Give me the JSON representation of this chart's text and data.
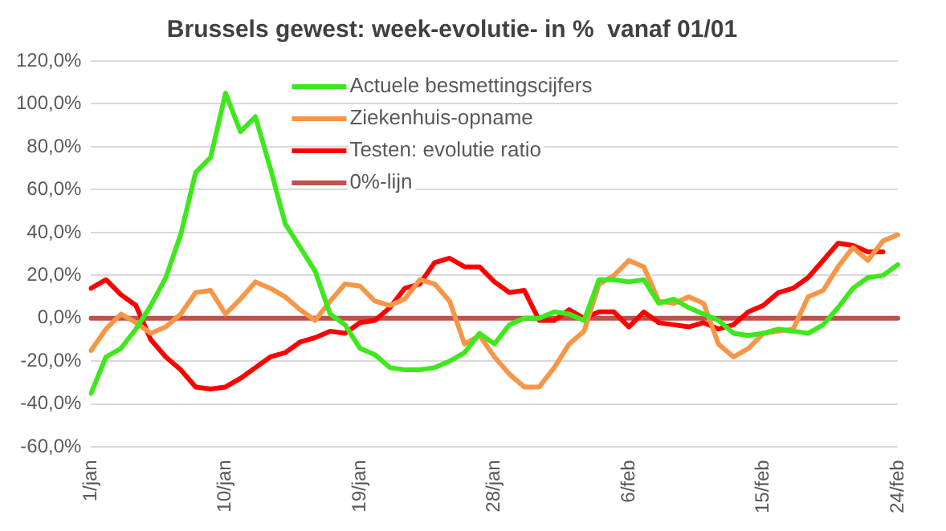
{
  "chart_data": {
    "type": "line",
    "title": "Brussels gewest: week-evolutie- in %  vanaf 01/01",
    "categories": [
      "1/jan",
      null,
      null,
      null,
      null,
      null,
      null,
      null,
      null,
      "10/jan",
      null,
      null,
      null,
      null,
      null,
      null,
      null,
      null,
      "19/jan",
      null,
      null,
      null,
      null,
      null,
      null,
      null,
      null,
      "28/jan",
      null,
      null,
      null,
      null,
      null,
      null,
      null,
      null,
      "6/feb",
      null,
      null,
      null,
      null,
      null,
      null,
      null,
      null,
      "15/feb",
      null,
      null,
      null,
      null,
      null,
      null,
      null,
      null,
      "24/feb"
    ],
    "series": [
      {
        "name": "Actuele besmettingscijfers",
        "color": "#3ee81c",
        "values": [
          -35,
          -18,
          -14,
          -5,
          6,
          19,
          39,
          68,
          75,
          105,
          87,
          94,
          70,
          44,
          33,
          22,
          2,
          -3,
          -14,
          -17,
          -23,
          -24,
          -24,
          -23,
          -20,
          -16,
          -7,
          -12,
          -3,
          0,
          0,
          3,
          2,
          -1,
          18,
          18,
          17,
          18,
          7,
          9,
          5,
          2,
          -1,
          -7,
          -8,
          -7,
          -5,
          -6,
          -7,
          -3,
          5,
          14,
          19,
          20,
          25
        ]
      },
      {
        "name": "Ziekenhuis-opname",
        "color": "#f79646",
        "values": [
          -15,
          -5,
          2,
          -2,
          -7,
          -4,
          2,
          12,
          13,
          2,
          9,
          17,
          14,
          10,
          4,
          -1,
          8,
          16,
          15,
          8,
          6,
          9,
          18,
          16,
          8,
          -12,
          -8,
          -18,
          -26,
          -32,
          -32,
          -23,
          -12,
          -6,
          16,
          20,
          27,
          24,
          8,
          7,
          10,
          7,
          -12,
          -18,
          -14,
          -7,
          -6,
          -5,
          10,
          13,
          24,
          33,
          27,
          36,
          39
        ]
      },
      {
        "name": "Testen: evolutie ratio",
        "color": "#ff0000",
        "values": [
          14,
          18,
          11,
          6,
          -10,
          -18,
          -24,
          -32,
          -33,
          -32,
          -28,
          -23,
          -18,
          -16,
          -11,
          -9,
          -6,
          -7,
          -2,
          -1,
          5,
          14,
          16,
          26,
          28,
          24,
          24,
          17,
          12,
          13,
          -1,
          -1,
          4,
          0,
          3,
          3,
          -4,
          3,
          -2,
          -3,
          -4,
          -2,
          -5,
          -3,
          3,
          6,
          12,
          14,
          19,
          27,
          35,
          34,
          31,
          31,
          null
        ]
      },
      {
        "name": "0%-lijn",
        "color": "#c0504d",
        "values": [
          0,
          0,
          0,
          0,
          0,
          0,
          0,
          0,
          0,
          0,
          0,
          0,
          0,
          0,
          0,
          0,
          0,
          0,
          0,
          0,
          0,
          0,
          0,
          0,
          0,
          0,
          0,
          0,
          0,
          0,
          0,
          0,
          0,
          0,
          0,
          0,
          0,
          0,
          0,
          0,
          0,
          0,
          0,
          0,
          0,
          0,
          0,
          0,
          0,
          0,
          0,
          0,
          0,
          0,
          0
        ]
      }
    ],
    "ylim": [
      -60,
      120
    ],
    "yticks": [
      {
        "value": -60,
        "label": "-60,0%"
      },
      {
        "value": -40,
        "label": "-40,0%"
      },
      {
        "value": -20,
        "label": "-20,0%"
      },
      {
        "value": 0,
        "label": "0,0%"
      },
      {
        "value": 20,
        "label": "20,0%"
      },
      {
        "value": 40,
        "label": "40,0%"
      },
      {
        "value": 60,
        "label": "60,0%"
      },
      {
        "value": 80,
        "label": "80,0%"
      },
      {
        "value": 100,
        "label": "100,0%"
      },
      {
        "value": 120,
        "label": "120,0%"
      }
    ],
    "grid": "y",
    "legend": "top left",
    "marker": "none",
    "line_style": "solid"
  }
}
